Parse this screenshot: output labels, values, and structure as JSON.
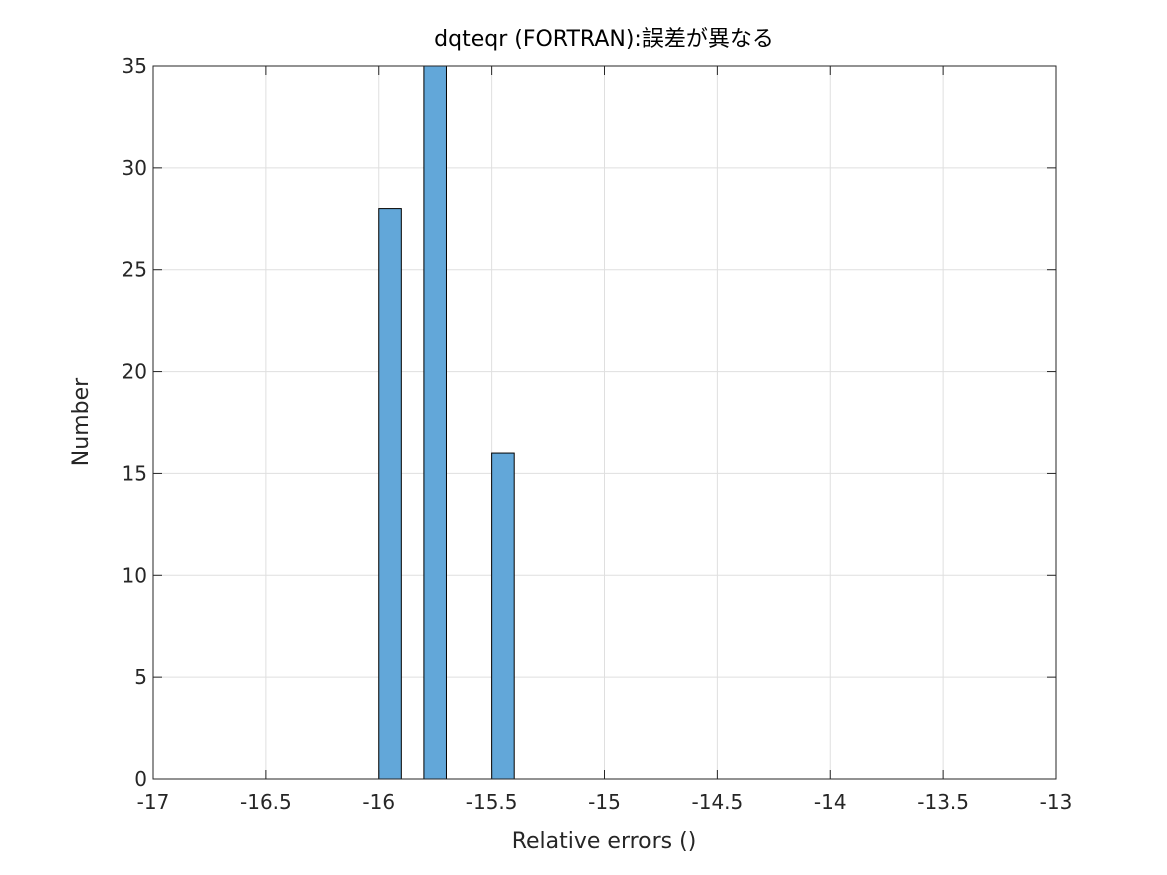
{
  "chart_data": {
    "type": "bar",
    "title": "dqteqr (FORTRAN):誤差が異なる",
    "xlabel": "Relative errors ()",
    "ylabel": "Number",
    "xlim": [
      -17,
      -13
    ],
    "ylim": [
      0,
      35
    ],
    "xticks": [
      "-17",
      "-16.5",
      "-16",
      "-15.5",
      "-15",
      "-14.5",
      "-14",
      "-13.5",
      "-13"
    ],
    "yticks": [
      "0",
      "5",
      "10",
      "15",
      "20",
      "25",
      "30",
      "35"
    ],
    "grid": true,
    "bars": [
      {
        "x0": -16.0,
        "x1": -15.9,
        "value": 28
      },
      {
        "x0": -15.8,
        "x1": -15.7,
        "value": 35
      },
      {
        "x0": -15.5,
        "x1": -15.4,
        "value": 16
      }
    ],
    "bar_color": "#62a7d9",
    "edge_color": "#000000"
  }
}
